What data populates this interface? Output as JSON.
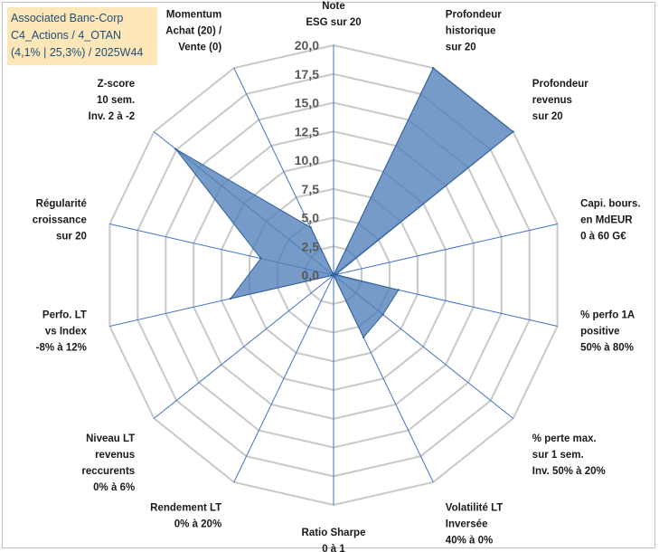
{
  "header": {
    "line1": "Associated Banc-Corp",
    "line2": "C4_Actions / 4_OTAN",
    "line3": "(4,1% | 25,3%) / 2025W44"
  },
  "colors": {
    "fill": "#4f7fb9",
    "stroke": "#2f5f99",
    "grid": "#c8c8c8",
    "spoke": "#4472c4",
    "title_bg": "#fde7b8",
    "title_text": "#1f4e79"
  },
  "chart_data": {
    "type": "radar",
    "rmin": 0,
    "rmax": 20,
    "tick_step": 2.5,
    "tick_labels": [
      "0,0",
      "2,5",
      "5,0",
      "7,5",
      "10,0",
      "12,5",
      "15,0",
      "17,5",
      "20,0"
    ],
    "axes": [
      {
        "lines": [
          "Note",
          "ESG sur 20"
        ],
        "value": 0
      },
      {
        "lines": [
          "Profondeur",
          "historique",
          "sur 20"
        ],
        "value": 20
      },
      {
        "lines": [
          "Profondeur",
          "revenus",
          "sur 20"
        ],
        "value": 20
      },
      {
        "lines": [
          "Capi. bours.",
          "en MdEUR",
          "0 à 60 G€"
        ],
        "value": 0.2
      },
      {
        "lines": [
          "% perfo 1A",
          "positive",
          "50% à 80%"
        ],
        "value": 5.8
      },
      {
        "lines": [
          "% perte max.",
          "sur 1 sem.",
          "Inv. 50% à 20%"
        ],
        "value": 5.5
      },
      {
        "lines": [
          "Volatilité LT",
          "Inversée",
          "40% à 0%"
        ],
        "value": 6.0
      },
      {
        "lines": [
          "Ratio Sharpe",
          "0 à 1"
        ],
        "value": 0
      },
      {
        "lines": [
          "Rendement LT",
          "0% à 20%"
        ],
        "value": 0
      },
      {
        "lines": [
          "Niveau LT",
          "revenus",
          "reccurents",
          "0% à 6%"
        ],
        "value": 0
      },
      {
        "lines": [
          "Perfo. LT",
          "vs Index",
          "-8% à 12%"
        ],
        "value": 9.2
      },
      {
        "lines": [
          "Régularité",
          "croissance",
          "sur 20"
        ],
        "value": 6.5
      },
      {
        "lines": [
          "Z-score",
          "10 sem.",
          "Inv. 2 à -2"
        ],
        "value": 17.6
      },
      {
        "lines": [
          "Momentum",
          "Achat (20) /",
          "Vente (0)"
        ],
        "value": 4.6
      }
    ]
  }
}
